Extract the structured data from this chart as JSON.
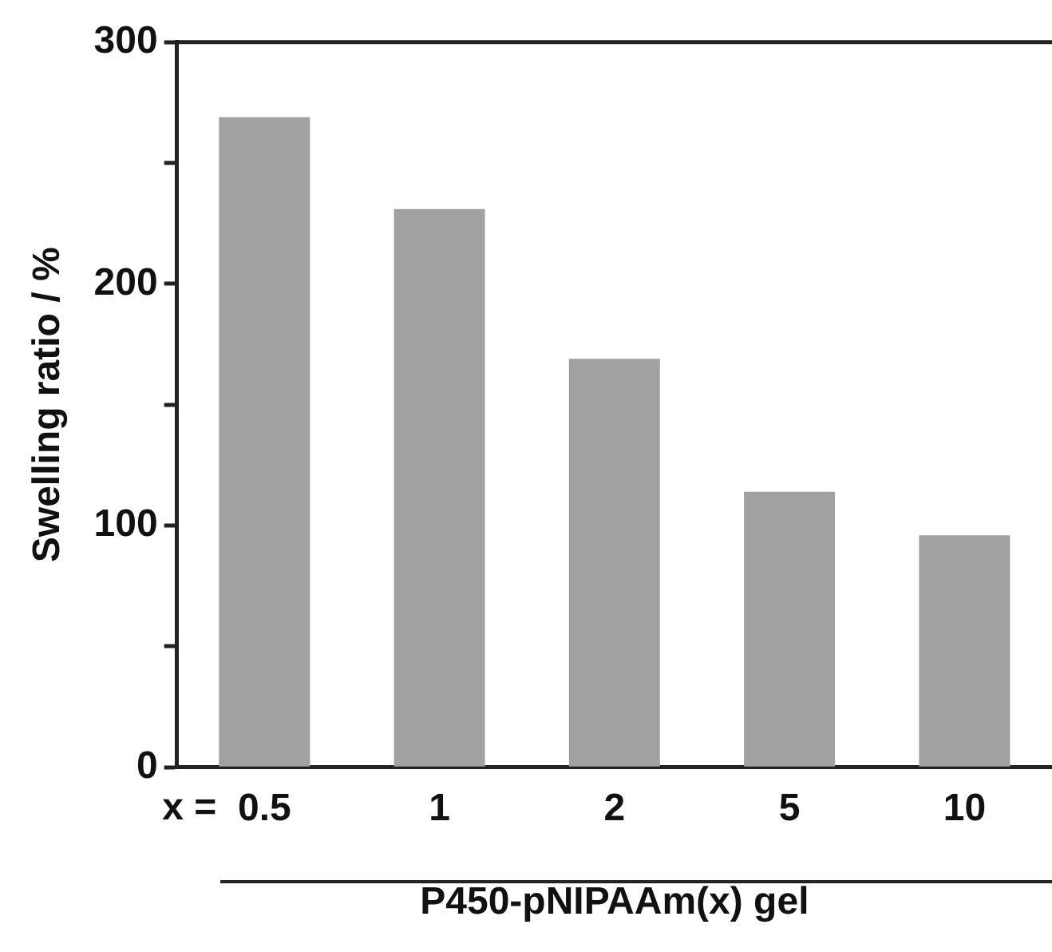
{
  "chart_data": {
    "type": "bar",
    "categories": [
      "0.5",
      "1",
      "2",
      "5",
      "10"
    ],
    "values": [
      269,
      231,
      169,
      114,
      96
    ],
    "color": "#a0a2a1",
    "ylabel": "Swelling ratio / %",
    "xlabel": "P450-pNIPAAm(x) gel",
    "annotations": [
      "x ="
    ],
    "ylim": [
      0,
      300
    ],
    "yticks": [
      0,
      {
        "value": 50,
        "label": null
      },
      100,
      {
        "value": 150,
        "label": null
      },
      200,
      {
        "value": 250,
        "label": null
      },
      300
    ],
    "grid": false,
    "legend": false
  }
}
